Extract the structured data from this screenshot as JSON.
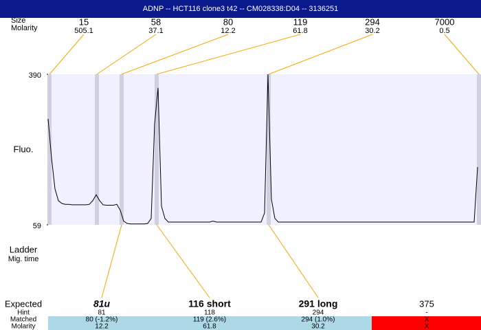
{
  "chart_data": {
    "type": "line",
    "title": "ADNP -- HCT116 clone3 t42 -- CM028338:D04 -- 3136251",
    "y_label": "Fluo.",
    "ylim": [
      59,
      390
    ],
    "yticks": [
      59,
      390
    ],
    "color": "#000000",
    "fill": "#f0f0ff",
    "size_label": "Size",
    "molarity_label": "Molarity",
    "ladder_label": "Ladder",
    "migration_label": "Mig. time",
    "ladder": [
      {
        "size": 15,
        "molarity": 505.1
      },
      {
        "size": 58,
        "molarity": 37.1
      },
      {
        "size": 80,
        "molarity": 12.2
      },
      {
        "size": 119,
        "molarity": 61.8
      },
      {
        "size": 294,
        "molarity": 30.2
      },
      {
        "size": 7000,
        "molarity": 0.5
      }
    ],
    "row_labels": [
      "Expected",
      "Hint",
      "Matched",
      "Molarity"
    ],
    "fragments": [
      {
        "expected": "81u",
        "hint": 81,
        "matched": "80 (-1.2%)",
        "molarity": 12.2
      },
      {
        "expected": "116 short",
        "hint": 118,
        "matched": "119 (2.6%)",
        "molarity": 61.8
      },
      {
        "expected": "291 long",
        "hint": 294,
        "matched": "294 (1.0%)",
        "molarity": 30.2
      },
      {
        "expected": 375,
        "hint": "-",
        "matched": "X",
        "molarity": "X"
      }
    ],
    "values": [
      292,
      206,
      138,
      112,
      106,
      104,
      104,
      103,
      103,
      103,
      103,
      103,
      104,
      112,
      125,
      112,
      103,
      102,
      102,
      102,
      104,
      91,
      67,
      62,
      61,
      61,
      61,
      61,
      61,
      62,
      73,
      281,
      360,
      100,
      73,
      65,
      65,
      65,
      65,
      65,
      65,
      65,
      65,
      65,
      65,
      65,
      65,
      65,
      67,
      65,
      65,
      65,
      65,
      65,
      65,
      65,
      65,
      65,
      65,
      65,
      65,
      65,
      65,
      85,
      390,
      115,
      73,
      65,
      65,
      65,
      65,
      65,
      65,
      65,
      65,
      65,
      65,
      65,
      65,
      65,
      65,
      65,
      65,
      65,
      65,
      65,
      65,
      65,
      65,
      65,
      65,
      65,
      65,
      65,
      65,
      65,
      65,
      65,
      65,
      65,
      65,
      65,
      65,
      65,
      65,
      65,
      65,
      65,
      65,
      65,
      65,
      65,
      65,
      65,
      65,
      65,
      65,
      65,
      65,
      65,
      65,
      65,
      65,
      65,
      65,
      186
    ]
  }
}
